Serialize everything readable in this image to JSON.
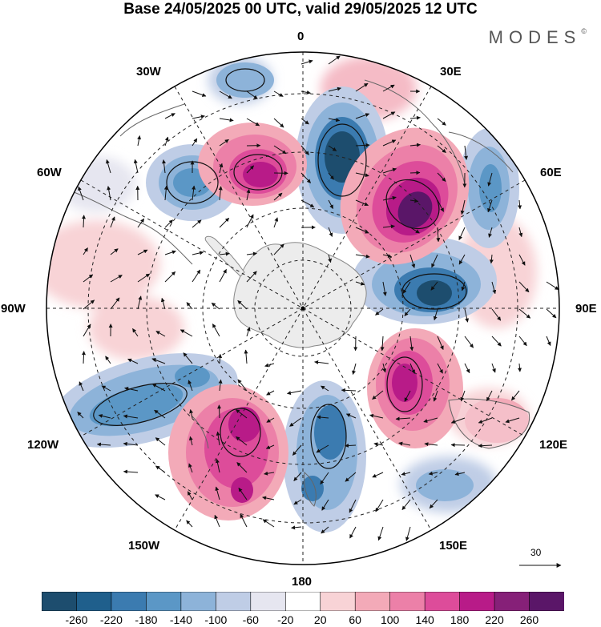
{
  "title": "Base 24/05/2025 00 UTC, valid 29/05/2025 12 UTC",
  "brand": "MODES",
  "brand_mark": "©",
  "lon_labels": {
    "lon_0": "0",
    "lon_30e": "30E",
    "lon_60e": "60E",
    "lon_90e": "90E",
    "lon_120e": "120E",
    "lon_150e": "150E",
    "lon_180": "180",
    "lon_150w": "150W",
    "lon_120w": "120W",
    "lon_90w": "90W",
    "lon_60w": "60W",
    "lon_30w": "30W"
  },
  "vector_scale": {
    "label": "30"
  },
  "colorbar": {
    "ticks": [
      "-260",
      "-220",
      "-180",
      "-140",
      "-100",
      "-60",
      "-20",
      "20",
      "60",
      "100",
      "140",
      "180",
      "220",
      "260"
    ],
    "colors": [
      "#1d4d6e",
      "#1f5f8c",
      "#3b7bb0",
      "#5b97c6",
      "#8db3d9",
      "#bfcde6",
      "#e6e6f0",
      "#ffffff",
      "#f8d3d6",
      "#f3aab8",
      "#ec80a8",
      "#dd4c9a",
      "#b81b88",
      "#862078",
      "#5a1668"
    ]
  }
}
